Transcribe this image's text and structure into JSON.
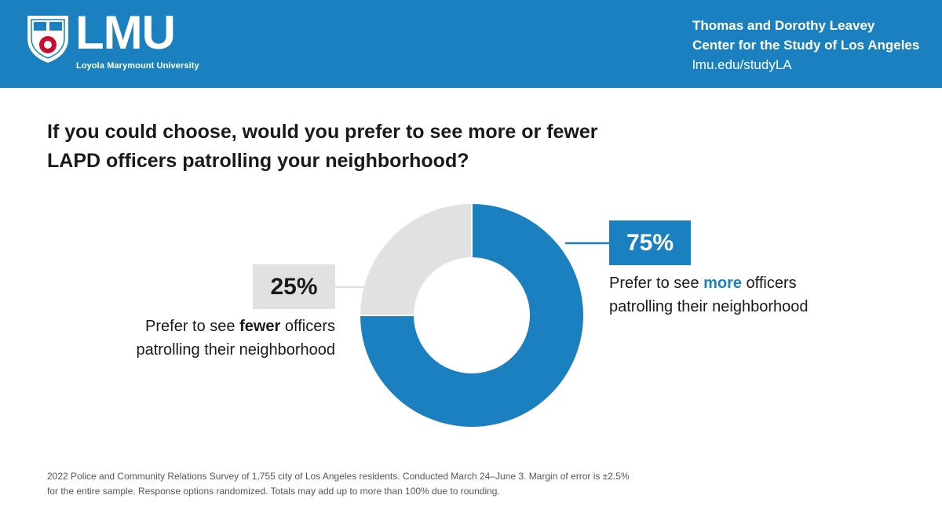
{
  "header": {
    "logo_text": "LMU",
    "logo_subtitle": "Loyola Marymount University",
    "center_line1": "Thomas and Dorothy Leavey",
    "center_line2": "Center for the Study of Los Angeles",
    "url": "lmu.edu/studyLA"
  },
  "colors": {
    "brand": "#1a80bf",
    "more": "#1a80bf",
    "fewer": "#e1e1e1"
  },
  "chart_data": {
    "type": "pie",
    "title": "If you could choose, would you prefer to see more or fewer LAPD officers patrolling your neighborhood?",
    "slices": [
      {
        "name": "more",
        "value": 75,
        "label": "75%",
        "text_before": "Prefer to see ",
        "text_emph": "more",
        "text_after": " officers",
        "text_line2": "patrolling their neighborhood",
        "color": "#1a80bf"
      },
      {
        "name": "fewer",
        "value": 25,
        "label": "25%",
        "text_before": "Prefer to see ",
        "text_emph": "fewer",
        "text_after": " officers",
        "text_line2": "patrolling their neighborhood",
        "color": "#e1e1e1"
      }
    ]
  },
  "footnote": {
    "line1": "2022 Police and Community Relations Survey of 1,755 city of Los Angeles residents. Conducted March 24–June 3. Margin of error is ±2.5%",
    "line2": "for the entire sample. Response options randomized. Totals may add up to more than 100% due to rounding."
  }
}
